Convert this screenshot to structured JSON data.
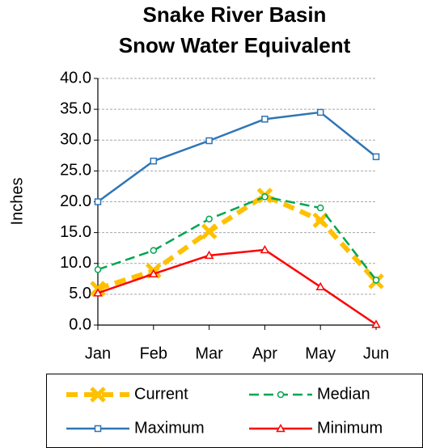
{
  "chart_data": {
    "type": "line",
    "title": "Snake River Basin",
    "subtitle": "Snow Water Equivalent",
    "y_label": "Inches",
    "categories": [
      "Jan",
      "Feb",
      "Mar",
      "Apr",
      "May",
      "Jun"
    ],
    "series": [
      {
        "name": "Current",
        "color": "#ffc000",
        "values": [
          5.9,
          8.8,
          15.2,
          21.0,
          17.0,
          7.1
        ]
      },
      {
        "name": "Median",
        "color": "#00a650",
        "values": [
          9.0,
          12.1,
          17.2,
          20.8,
          19.0,
          7.3
        ]
      },
      {
        "name": "Maximum",
        "color": "#2e75b6",
        "values": [
          20.0,
          26.6,
          29.9,
          33.4,
          34.5,
          27.3
        ]
      },
      {
        "name": "Minimum",
        "color": "#ff0000",
        "values": [
          5.2,
          8.3,
          11.3,
          12.2,
          6.2,
          0.1
        ]
      }
    ],
    "ylim": [
      0,
      40
    ],
    "yticks": [
      {
        "value": 0,
        "label": "0.0"
      },
      {
        "value": 5,
        "label": "5.0"
      },
      {
        "value": 10,
        "label": "10.0"
      },
      {
        "value": 15,
        "label": "15.0"
      },
      {
        "value": 20,
        "label": "20.0"
      },
      {
        "value": 25,
        "label": "25.0"
      },
      {
        "value": 30,
        "label": "30.0"
      },
      {
        "value": 35,
        "label": "35.0"
      },
      {
        "value": 40,
        "label": "40.0"
      }
    ],
    "grid": true,
    "legend": "bottom"
  }
}
